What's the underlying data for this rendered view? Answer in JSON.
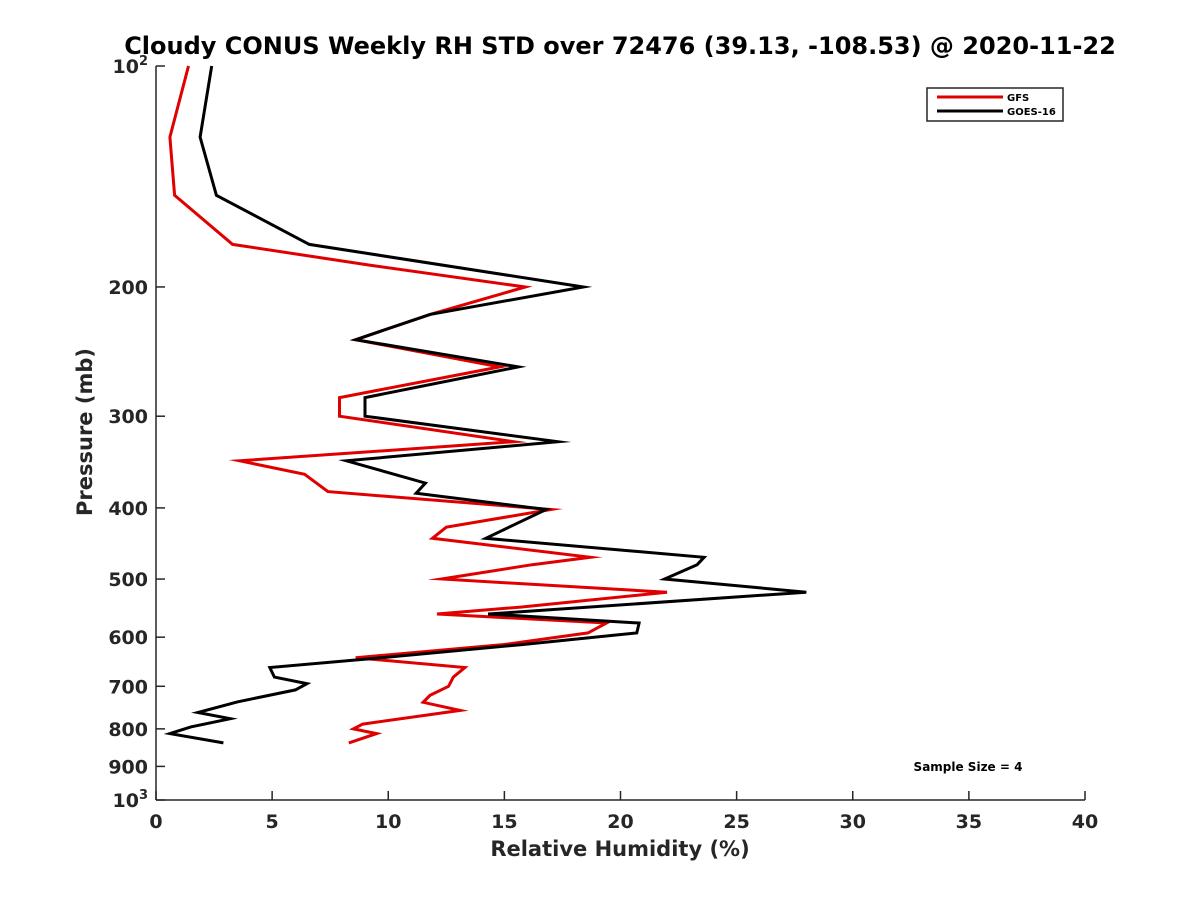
{
  "chart_data": {
    "type": "line",
    "title": "Cloudy CONUS Weekly RH STD over 72476 (39.13, -108.53) @ 2020-11-22",
    "xlabel": "Relative Humidity (%)",
    "ylabel": "Pressure (mb)",
    "xlim": [
      0,
      40
    ],
    "ylim": [
      100,
      1000
    ],
    "y_scale": "log",
    "y_reversed": true,
    "grid": false,
    "legend_position": "top-right",
    "x_ticks": [
      "0",
      "5",
      "10",
      "15",
      "20",
      "25",
      "30",
      "35",
      "40"
    ],
    "x_tick_values": [
      0,
      5,
      10,
      15,
      20,
      25,
      30,
      35,
      40
    ],
    "y_tick_values": [
      100,
      200,
      300,
      400,
      500,
      600,
      700,
      800,
      900,
      1000
    ],
    "y_ticks": [
      {
        "value": 100,
        "base": "10",
        "exp": "2"
      },
      {
        "value": 200,
        "label": "200"
      },
      {
        "value": 300,
        "label": "300"
      },
      {
        "value": 400,
        "label": "400"
      },
      {
        "value": 500,
        "label": "500"
      },
      {
        "value": 600,
        "label": "600"
      },
      {
        "value": 700,
        "label": "700"
      },
      {
        "value": 800,
        "label": "800"
      },
      {
        "value": 900,
        "label": "900"
      },
      {
        "value": 1000,
        "base": "10",
        "exp": "3"
      }
    ],
    "annotation": "Sample Size = 4",
    "series": [
      {
        "name": "GFS",
        "color": "#e00000",
        "points": [
          [
            1.4,
            100
          ],
          [
            0.6,
            125
          ],
          [
            0.8,
            150
          ],
          [
            3.3,
            175
          ],
          [
            9.3,
            187
          ],
          [
            15.9,
            200
          ],
          [
            11.8,
            218
          ],
          [
            8.6,
            236
          ],
          [
            14.8,
            257
          ],
          [
            7.9,
            283
          ],
          [
            7.9,
            300
          ],
          [
            15.4,
            325
          ],
          [
            3.6,
            345
          ],
          [
            6.4,
            360
          ],
          [
            7.4,
            380
          ],
          [
            17.0,
            402
          ],
          [
            12.5,
            425
          ],
          [
            11.9,
            440
          ],
          [
            18.7,
            467
          ],
          [
            16.2,
            478
          ],
          [
            12.3,
            500
          ],
          [
            22.0,
            521
          ],
          [
            15.7,
            546
          ],
          [
            12.1,
            558
          ],
          [
            19.4,
            574
          ],
          [
            18.6,
            592
          ],
          [
            15.0,
            614
          ],
          [
            8.6,
            640
          ],
          [
            13.3,
            660
          ],
          [
            12.8,
            680
          ],
          [
            12.6,
            700
          ],
          [
            11.8,
            720
          ],
          [
            11.5,
            736
          ],
          [
            13.1,
            755
          ],
          [
            8.9,
            788
          ],
          [
            8.5,
            800
          ],
          [
            9.5,
            812
          ],
          [
            8.3,
            836
          ]
        ]
      },
      {
        "name": "GOES-16",
        "color": "#000000",
        "points": [
          [
            2.4,
            100
          ],
          [
            1.9,
            125
          ],
          [
            2.6,
            150
          ],
          [
            6.6,
            175
          ],
          [
            18.4,
            200
          ],
          [
            11.8,
            218
          ],
          [
            8.6,
            236
          ],
          [
            15.6,
            257
          ],
          [
            9.0,
            283
          ],
          [
            9.0,
            300
          ],
          [
            17.3,
            325
          ],
          [
            8.2,
            345
          ],
          [
            11.6,
            370
          ],
          [
            11.2,
            382
          ],
          [
            16.8,
            402
          ],
          [
            15.2,
            425
          ],
          [
            14.2,
            440
          ],
          [
            23.6,
            467
          ],
          [
            23.3,
            478
          ],
          [
            21.9,
            500
          ],
          [
            28.0,
            521
          ],
          [
            14.3,
            558
          ],
          [
            20.8,
            574
          ],
          [
            20.7,
            592
          ],
          [
            15.8,
            614
          ],
          [
            9.7,
            640
          ],
          [
            4.9,
            660
          ],
          [
            5.1,
            680
          ],
          [
            6.5,
            694
          ],
          [
            6.0,
            708
          ],
          [
            3.5,
            735
          ],
          [
            1.8,
            760
          ],
          [
            3.2,
            775
          ],
          [
            1.5,
            795
          ],
          [
            0.6,
            812
          ],
          [
            2.9,
            836
          ]
        ]
      }
    ]
  }
}
